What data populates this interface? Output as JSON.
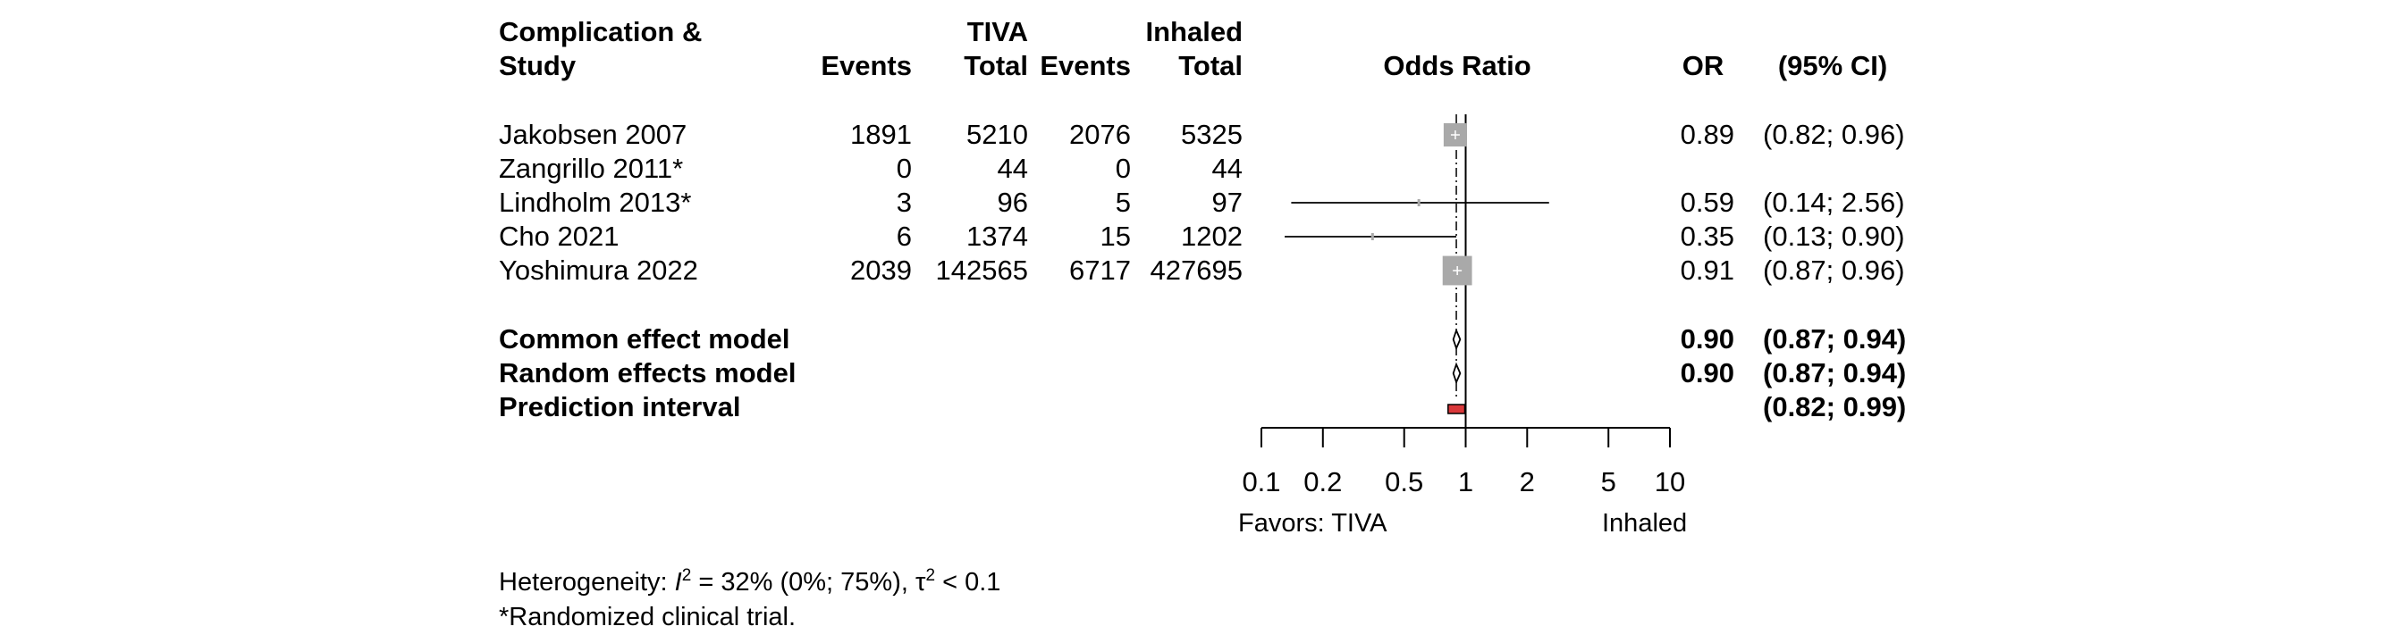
{
  "colors": {
    "square": "#a9a9a9",
    "prediction_fill": "#d9383a",
    "line": "#000000"
  },
  "header": {
    "complication": "Complication &",
    "study": "Study",
    "tiva_group": "TIVA",
    "inhaled_group": "Inhaled",
    "events": "Events",
    "total": "Total",
    "events2": "Events",
    "total2": "Total",
    "odds_ratio": "Odds Ratio",
    "or": "OR",
    "ci": "(95% CI)"
  },
  "rows": [
    {
      "study": "Jakobsen 2007",
      "e1": "1891",
      "t1": "5210",
      "e2": "2076",
      "t2": "5325",
      "or_text": "0.89",
      "ci_text": "(0.82; 0.96)"
    },
    {
      "study": "Zangrillo 2011*",
      "e1": "0",
      "t1": "44",
      "e2": "0",
      "t2": "44",
      "or_text": "",
      "ci_text": ""
    },
    {
      "study": "Lindholm 2013*",
      "e1": "3",
      "t1": "96",
      "e2": "5",
      "t2": "97",
      "or_text": "0.59",
      "ci_text": "(0.14; 2.56)"
    },
    {
      "study": "Cho 2021",
      "e1": "6",
      "t1": "1374",
      "e2": "15",
      "t2": "1202",
      "or_text": "0.35",
      "ci_text": "(0.13; 0.90)"
    },
    {
      "study": "Yoshimura 2022",
      "e1": "2039",
      "t1": "142565",
      "e2": "6717",
      "t2": "427695",
      "or_text": "0.91",
      "ci_text": "(0.87; 0.96)"
    }
  ],
  "summary": [
    {
      "label": "Common effect model",
      "or_text": "0.90",
      "ci_text": "(0.87; 0.94)"
    },
    {
      "label": "Random effects model",
      "or_text": "0.90",
      "ci_text": "(0.87; 0.94)"
    },
    {
      "label": "Prediction interval",
      "or_text": "",
      "ci_text": "(0.82; 0.99)"
    }
  ],
  "favors": {
    "left": "Favors: TIVA",
    "right": "Inhaled"
  },
  "heterogeneity": {
    "prefix": "Heterogeneity: ",
    "i_symbol": "I",
    "i_exp": "2",
    "i_value": " = 32% (0%; 75%), ",
    "tau_symbol": "τ",
    "tau_exp": "2",
    "tau_value": " < 0.1"
  },
  "footnote": "*Randomized clinical trial.",
  "chart_data": {
    "type": "forest",
    "scale": "log",
    "xlim": [
      0.1,
      10
    ],
    "xticks": [
      0.1,
      0.2,
      0.5,
      1,
      2,
      5,
      10
    ],
    "xtick_labels": [
      "0.1",
      "0.2",
      "0.5",
      "1",
      "2",
      "5",
      "10"
    ],
    "reference_line": 1,
    "pooled_line": 0.9,
    "studies": [
      {
        "name": "Jakobsen 2007",
        "or": 0.89,
        "lower": 0.82,
        "upper": 0.96,
        "weight": 0.45
      },
      {
        "name": "Zangrillo 2011*",
        "or": null,
        "lower": null,
        "upper": null,
        "weight": 0
      },
      {
        "name": "Lindholm 2013*",
        "or": 0.59,
        "lower": 0.14,
        "upper": 2.56,
        "weight": 0.01
      },
      {
        "name": "Cho 2021",
        "or": 0.35,
        "lower": 0.13,
        "upper": 0.9,
        "weight": 0.02
      },
      {
        "name": "Yoshimura 2022",
        "or": 0.91,
        "lower": 0.87,
        "upper": 0.96,
        "weight": 0.8
      }
    ],
    "common_effect": {
      "or": 0.9,
      "lower": 0.87,
      "upper": 0.94
    },
    "random_effects": {
      "or": 0.9,
      "lower": 0.87,
      "upper": 0.94
    },
    "prediction_interval": {
      "lower": 0.82,
      "upper": 0.99
    }
  }
}
